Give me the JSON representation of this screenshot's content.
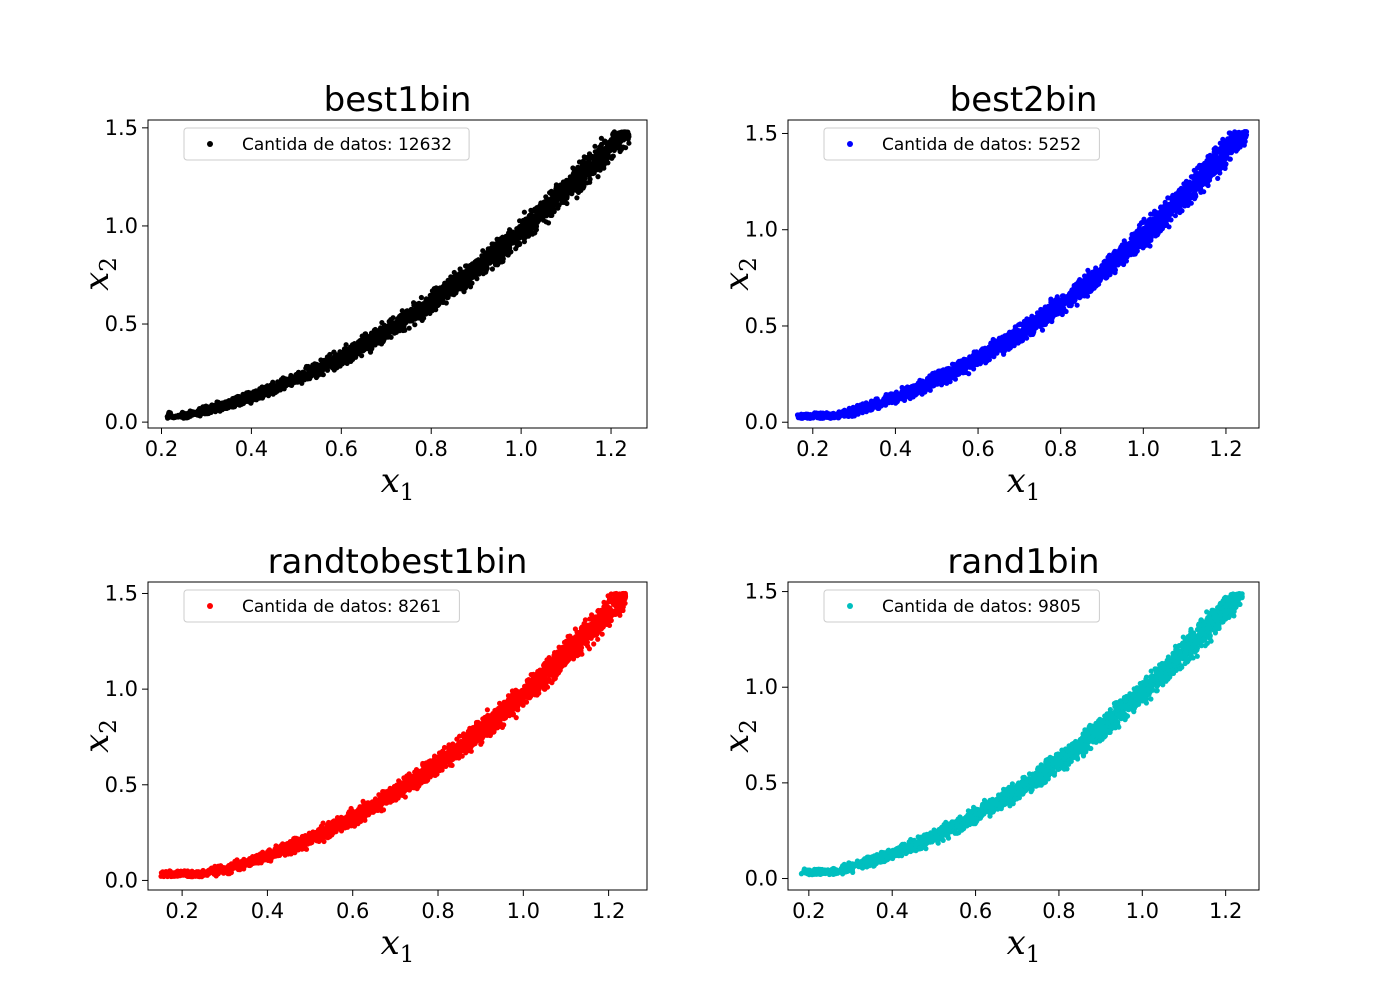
{
  "chart_data": [
    {
      "type": "scatter",
      "title": "best1bin",
      "xlabel": "x",
      "xlabel_sub": "1",
      "ylabel": "x",
      "ylabel_sub": "2",
      "xlim": [
        0.17,
        1.28
      ],
      "ylim": [
        -0.03,
        1.54
      ],
      "xticks": [
        "0.2",
        "0.4",
        "0.6",
        "0.8",
        "1.0",
        "1.2"
      ],
      "yticks": [
        "0.0",
        "0.5",
        "1.0",
        "1.5"
      ],
      "color": "#000000",
      "legend": "Cantida de datos: 12632",
      "legend_position": "top-left",
      "series": [
        {
          "x_range": [
            0.21,
            1.24
          ],
          "curve": "y ≈ x^2",
          "points_approx": 12632
        }
      ]
    },
    {
      "type": "scatter",
      "title": "best2bin",
      "xlabel": "x",
      "xlabel_sub": "1",
      "ylabel": "x",
      "ylabel_sub": "2",
      "xlim": [
        0.14,
        1.28
      ],
      "ylim": [
        -0.03,
        1.57
      ],
      "xticks": [
        "0.2",
        "0.4",
        "0.6",
        "0.8",
        "1.0",
        "1.2"
      ],
      "yticks": [
        "0.0",
        "0.5",
        "1.0",
        "1.5"
      ],
      "color": "#0000ff",
      "legend": "Cantida de datos: 5252",
      "legend_position": "top-left",
      "series": [
        {
          "x_range": [
            0.16,
            1.25
          ],
          "curve": "y ≈ x^2",
          "points_approx": 5252
        }
      ]
    },
    {
      "type": "scatter",
      "title": "randtobest1bin",
      "xlabel": "x",
      "xlabel_sub": "1",
      "ylabel": "x",
      "ylabel_sub": "2",
      "xlim": [
        0.12,
        1.29
      ],
      "ylim": [
        -0.05,
        1.56
      ],
      "xticks": [
        "0.2",
        "0.4",
        "0.6",
        "0.8",
        "1.0",
        "1.2"
      ],
      "yticks": [
        "0.0",
        "0.5",
        "1.0",
        "1.5"
      ],
      "color": "#ff0000",
      "legend": "Cantida de datos: 8261",
      "legend_position": "top-left",
      "series": [
        {
          "x_range": [
            0.15,
            1.24
          ],
          "curve": "y ≈ x^2",
          "points_approx": 8261
        }
      ]
    },
    {
      "type": "scatter",
      "title": "rand1bin",
      "xlabel": "x",
      "xlabel_sub": "1",
      "ylabel": "x",
      "ylabel_sub": "2",
      "xlim": [
        0.15,
        1.28
      ],
      "ylim": [
        -0.06,
        1.55
      ],
      "xticks": [
        "0.2",
        "0.4",
        "0.6",
        "0.8",
        "1.0",
        "1.2"
      ],
      "yticks": [
        "0.0",
        "0.5",
        "1.0",
        "1.5"
      ],
      "color": "#00bfbf",
      "legend": "Cantida de datos: 9805",
      "legend_position": "top-left",
      "series": [
        {
          "x_range": [
            0.18,
            1.24
          ],
          "curve": "y ≈ x^2",
          "points_approx": 9805
        }
      ]
    }
  ]
}
